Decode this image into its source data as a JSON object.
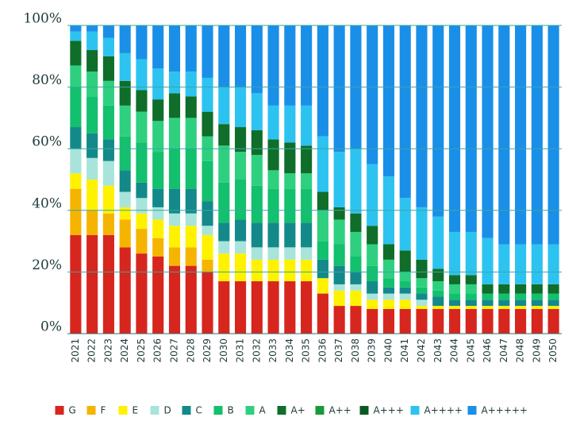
{
  "chart_data": {
    "type": "stacked_bar",
    "categories": [
      "2021",
      "2022",
      "2023",
      "2024",
      "2025",
      "2026",
      "2027",
      "2028",
      "2029",
      "2030",
      "2031",
      "2032",
      "2033",
      "2034",
      "2035",
      "2036",
      "2037",
      "2038",
      "2039",
      "2040",
      "2041",
      "2042",
      "2043",
      "2044",
      "2045",
      "2046",
      "2047",
      "2048",
      "2049",
      "2050"
    ],
    "ylim": [
      0,
      100
    ],
    "yticks": [
      {
        "value": 0,
        "label": "0%"
      },
      {
        "value": 20,
        "label": "20%"
      },
      {
        "value": 40,
        "label": "40%"
      },
      {
        "value": 60,
        "label": "60%"
      },
      {
        "value": 80,
        "label": "80%"
      },
      {
        "value": 100,
        "label": "100%"
      }
    ],
    "grid": true,
    "legend": "bottom",
    "series": [
      {
        "name": "G",
        "color": "#d7261e",
        "values": [
          32,
          32,
          32,
          28,
          26,
          25,
          22,
          22,
          20,
          17,
          17,
          17,
          17,
          17,
          17,
          13,
          9,
          9,
          8,
          8,
          8,
          8,
          8,
          8,
          8,
          8,
          8,
          8,
          8,
          8
        ]
      },
      {
        "name": "F",
        "color": "#f5b400",
        "values": [
          15,
          8,
          7,
          9,
          8,
          6,
          6,
          6,
          4,
          0,
          0,
          0,
          0,
          0,
          0,
          0,
          0,
          0,
          0,
          0,
          0,
          0,
          0,
          0,
          0,
          0,
          0,
          0,
          0,
          0
        ]
      },
      {
        "name": "E",
        "color": "#fff200",
        "values": [
          5,
          10,
          9,
          4,
          5,
          6,
          7,
          7,
          8,
          9,
          9,
          7,
          7,
          7,
          7,
          5,
          5,
          5,
          3,
          3,
          3,
          1,
          1,
          1,
          1,
          1,
          1,
          1,
          1,
          1
        ]
      },
      {
        "name": "D",
        "color": "#a8e4db",
        "values": [
          8,
          7,
          8,
          5,
          5,
          4,
          4,
          4,
          3,
          4,
          4,
          4,
          4,
          4,
          4,
          0,
          2,
          2,
          2,
          2,
          2,
          2,
          0,
          0,
          0,
          0,
          0,
          0,
          0,
          0
        ]
      },
      {
        "name": "C",
        "color": "#13898a",
        "values": [
          7,
          8,
          7,
          7,
          5,
          6,
          8,
          8,
          8,
          6,
          7,
          8,
          8,
          8,
          8,
          6,
          6,
          4,
          4,
          2,
          2,
          2,
          3,
          2,
          2,
          2,
          2,
          2,
          2,
          2
        ]
      },
      {
        "name": "B",
        "color": "#12c06e",
        "values": [
          13,
          12,
          11,
          11,
          13,
          12,
          13,
          13,
          13,
          13,
          13,
          12,
          11,
          11,
          11,
          6,
          7,
          5,
          5,
          3,
          2,
          2,
          2,
          2,
          2,
          2,
          2,
          2,
          2,
          2
        ]
      },
      {
        "name": "A",
        "color": "#2ed07f",
        "values": [
          7,
          8,
          8,
          10,
          10,
          10,
          10,
          10,
          8,
          12,
          9,
          10,
          6,
          5,
          5,
          10,
          8,
          8,
          7,
          6,
          3,
          3,
          3,
          3,
          3,
          0,
          0,
          0,
          0,
          0
        ]
      },
      {
        "name": "A+",
        "color": "#0f6e2a",
        "values": [
          8,
          7,
          8,
          8,
          7,
          7,
          8,
          7,
          8,
          7,
          8,
          8,
          10,
          10,
          9,
          6,
          4,
          6,
          6,
          5,
          7,
          6,
          4,
          3,
          3,
          3,
          3,
          3,
          3,
          3
        ]
      },
      {
        "name": "A++",
        "color": "#1a9a3a",
        "values": [
          0,
          0,
          0,
          0,
          0,
          0,
          0,
          0,
          0,
          0,
          0,
          0,
          0,
          0,
          0,
          0,
          0,
          0,
          0,
          0,
          0,
          0,
          0,
          0,
          0,
          0,
          0,
          0,
          0,
          0
        ]
      },
      {
        "name": "A+++",
        "color": "#0a5a20",
        "values": [
          0,
          0,
          0,
          0,
          0,
          0,
          0,
          0,
          0,
          0,
          0,
          0,
          0,
          0,
          0,
          0,
          0,
          0,
          0,
          0,
          0,
          0,
          0,
          0,
          0,
          0,
          0,
          0,
          0,
          0
        ]
      },
      {
        "name": "A++++",
        "color": "#2dc3f0",
        "values": [
          3,
          6,
          6,
          9,
          10,
          10,
          7,
          8,
          11,
          12,
          13,
          12,
          11,
          12,
          13,
          18,
          18,
          21,
          20,
          22,
          17,
          17,
          17,
          14,
          14,
          15,
          13,
          13,
          13,
          13
        ]
      },
      {
        "name": "A+++++",
        "color": "#1a8fe8",
        "values": [
          2,
          2,
          4,
          9,
          11,
          14,
          15,
          15,
          17,
          20,
          20,
          22,
          26,
          26,
          26,
          36,
          41,
          40,
          45,
          49,
          56,
          59,
          62,
          67,
          67,
          69,
          71,
          71,
          71,
          71
        ]
      }
    ]
  }
}
